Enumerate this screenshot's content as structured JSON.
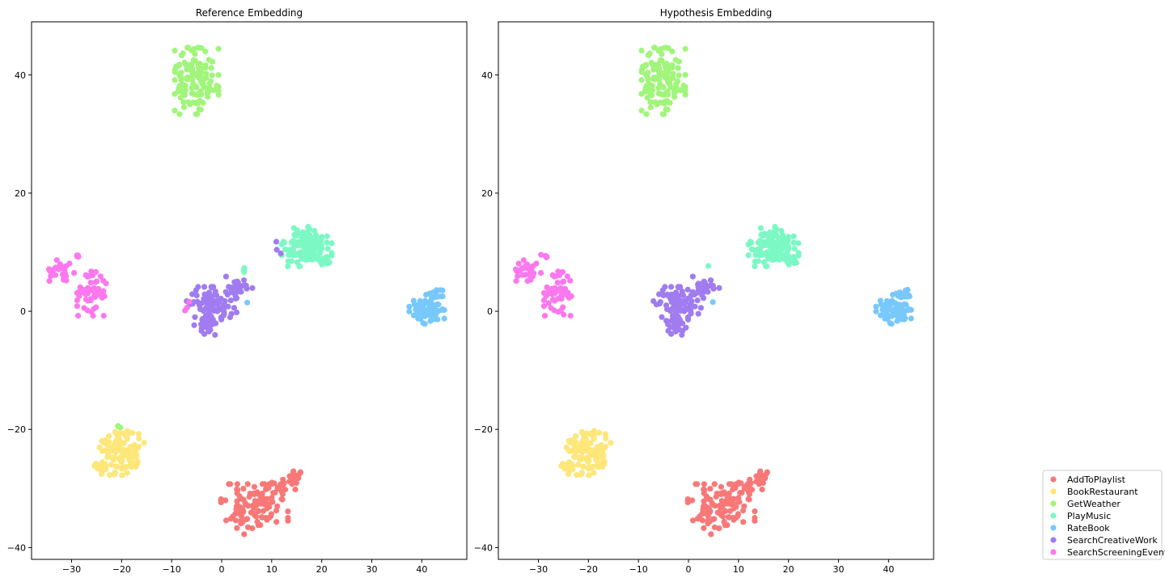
{
  "chart_data": [
    {
      "type": "scatter",
      "title": "Reference Embedding",
      "xlabel": "",
      "ylabel": "",
      "xlim": [
        -38,
        49
      ],
      "ylim": [
        -42,
        49
      ],
      "xticks": [
        -30,
        -20,
        -10,
        0,
        10,
        20,
        30,
        40
      ],
      "yticks": [
        -40,
        -20,
        0,
        20,
        40
      ],
      "grid": false,
      "series": [
        {
          "name": "AddToPlaylist",
          "clusters": [
            {
              "cx": 7,
              "cy": -33,
              "rx": 5,
              "ry": 3,
              "n": 90
            },
            {
              "cx": 12,
              "cy": -30,
              "rx": 2.5,
              "ry": 1.5,
              "n": 20
            },
            {
              "cx": 14.5,
              "cy": -28,
              "rx": 1,
              "ry": 1,
              "n": 14
            },
            {
              "cx": 3,
              "cy": -34,
              "rx": 2.5,
              "ry": 3,
              "n": 20
            }
          ]
        },
        {
          "name": "BookRestaurant",
          "clusters": [
            {
              "cx": -20.5,
              "cy": -24,
              "rx": 4,
              "ry": 3,
              "n": 110
            },
            {
              "cx": -24,
              "cy": -26,
              "rx": 1.2,
              "ry": 1,
              "n": 12
            }
          ]
        },
        {
          "name": "GetWeather",
          "clusters": [
            {
              "cx": -5,
              "cy": 39,
              "rx": 3.5,
              "ry": 4.5,
              "n": 130
            },
            {
              "cx": -20,
              "cy": -19.5,
              "rx": 1.2,
              "ry": 0.4,
              "n": 3
            }
          ]
        },
        {
          "name": "PlayMusic",
          "clusters": [
            {
              "cx": 17,
              "cy": 11,
              "rx": 4,
              "ry": 2.7,
              "n": 120
            },
            {
              "cx": 20.5,
              "cy": 8.5,
              "rx": 1,
              "ry": 0.8,
              "n": 10
            },
            {
              "cx": 4,
              "cy": 7,
              "rx": 0.6,
              "ry": 0.7,
              "n": 3
            }
          ]
        },
        {
          "name": "RateBook",
          "clusters": [
            {
              "cx": 41,
              "cy": 0,
              "rx": 2.8,
              "ry": 2.4,
              "n": 70
            },
            {
              "cx": 43.5,
              "cy": 3,
              "rx": 1,
              "ry": 0.8,
              "n": 10
            },
            {
              "cx": 5,
              "cy": 1.5,
              "rx": 0.2,
              "ry": 0.2,
              "n": 1
            }
          ]
        },
        {
          "name": "SearchCreativeWork",
          "clusters": [
            {
              "cx": -2,
              "cy": 1,
              "rx": 4,
              "ry": 2.5,
              "n": 80
            },
            {
              "cx": -3,
              "cy": -2,
              "rx": 2,
              "ry": 1.6,
              "n": 25
            },
            {
              "cx": 3,
              "cy": 4,
              "rx": 2.5,
              "ry": 1.5,
              "n": 30
            },
            {
              "cx": 11.5,
              "cy": 10.5,
              "rx": 0.6,
              "ry": 1.8,
              "n": 3
            }
          ]
        },
        {
          "name": "SearchScreeningEvent",
          "clusters": [
            {
              "cx": -32,
              "cy": 7,
              "rx": 2,
              "ry": 1.5,
              "n": 30
            },
            {
              "cx": -26,
              "cy": 3,
              "rx": 2.3,
              "ry": 3,
              "n": 55
            },
            {
              "cx": -28.5,
              "cy": 9.5,
              "rx": 1,
              "ry": 0.3,
              "n": 4
            },
            {
              "cx": -7,
              "cy": 2,
              "rx": 0.6,
              "ry": 1.5,
              "n": 3
            }
          ]
        }
      ]
    },
    {
      "type": "scatter",
      "title": "Hypothesis Embedding",
      "xlabel": "",
      "ylabel": "",
      "xlim": [
        -38,
        49
      ],
      "ylim": [
        -42,
        49
      ],
      "xticks": [
        -30,
        -20,
        -10,
        0,
        10,
        20,
        30,
        40
      ],
      "yticks": [
        -40,
        -20,
        0,
        20,
        40
      ],
      "grid": false,
      "series": [
        {
          "name": "AddToPlaylist",
          "clusters": [
            {
              "cx": 7,
              "cy": -33,
              "rx": 5,
              "ry": 3,
              "n": 90
            },
            {
              "cx": 12,
              "cy": -30,
              "rx": 2.5,
              "ry": 1.5,
              "n": 20
            },
            {
              "cx": 14.5,
              "cy": -28,
              "rx": 1,
              "ry": 1,
              "n": 14
            },
            {
              "cx": 3,
              "cy": -34,
              "rx": 2.5,
              "ry": 3,
              "n": 20
            }
          ]
        },
        {
          "name": "BookRestaurant",
          "clusters": [
            {
              "cx": -20.5,
              "cy": -24,
              "rx": 4,
              "ry": 3,
              "n": 110
            },
            {
              "cx": -24,
              "cy": -26,
              "rx": 1.2,
              "ry": 1,
              "n": 12
            }
          ]
        },
        {
          "name": "GetWeather",
          "clusters": [
            {
              "cx": -5,
              "cy": 39,
              "rx": 3.5,
              "ry": 4.5,
              "n": 130
            }
          ]
        },
        {
          "name": "PlayMusic",
          "clusters": [
            {
              "cx": 17,
              "cy": 11,
              "rx": 4,
              "ry": 2.7,
              "n": 120
            },
            {
              "cx": 20.5,
              "cy": 8.5,
              "rx": 1,
              "ry": 0.8,
              "n": 10
            },
            {
              "cx": 4,
              "cy": 7.5,
              "rx": 0.3,
              "ry": 0.3,
              "n": 1
            }
          ]
        },
        {
          "name": "RateBook",
          "clusters": [
            {
              "cx": 41,
              "cy": 0,
              "rx": 2.8,
              "ry": 2.4,
              "n": 70
            },
            {
              "cx": 43.5,
              "cy": 3,
              "rx": 1,
              "ry": 0.8,
              "n": 10
            },
            {
              "cx": 5,
              "cy": 1.5,
              "rx": 0.2,
              "ry": 0.2,
              "n": 1
            }
          ]
        },
        {
          "name": "SearchCreativeWork",
          "clusters": [
            {
              "cx": -2,
              "cy": 1,
              "rx": 4,
              "ry": 2.5,
              "n": 80
            },
            {
              "cx": -3,
              "cy": -2,
              "rx": 2,
              "ry": 1.6,
              "n": 25
            },
            {
              "cx": 3,
              "cy": 4,
              "rx": 2.5,
              "ry": 1.5,
              "n": 30
            }
          ]
        },
        {
          "name": "SearchScreeningEvent",
          "clusters": [
            {
              "cx": -32,
              "cy": 7,
              "rx": 2,
              "ry": 1.5,
              "n": 30
            },
            {
              "cx": -26,
              "cy": 3,
              "rx": 2.3,
              "ry": 3,
              "n": 55
            },
            {
              "cx": -28.5,
              "cy": 9.5,
              "rx": 1,
              "ry": 0.3,
              "n": 4
            }
          ]
        }
      ]
    }
  ],
  "legend": {
    "placement": "bottom-right",
    "entries": [
      {
        "name": "AddToPlaylist",
        "color": "#f87878"
      },
      {
        "name": "BookRestaurant",
        "color": "#fde77a"
      },
      {
        "name": "GetWeather",
        "color": "#a0f57a"
      },
      {
        "name": "PlayMusic",
        "color": "#7cf8c4"
      },
      {
        "name": "RateBook",
        "color": "#78c8fc"
      },
      {
        "name": "SearchCreativeWork",
        "color": "#a07cf0"
      },
      {
        "name": "SearchScreeningEvent",
        "color": "#fb78ee"
      }
    ]
  }
}
